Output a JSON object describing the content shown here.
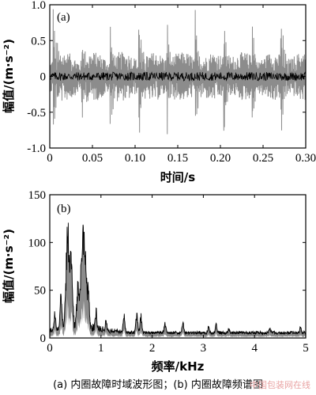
{
  "caption": "(a) 内圈故障时域波形图；(b) 内圈故障频谱图",
  "watermark": "中国包装网在线",
  "chart_data": [
    {
      "type": "line",
      "panel_label": "(a)",
      "xlabel": "时间/s",
      "ylabel": "幅值/(m·s⁻²)",
      "xlim": [
        0,
        0.3
      ],
      "ylim": [
        -1.0,
        1.0
      ],
      "xticks": [
        0,
        0.05,
        0.1,
        0.15,
        0.2,
        0.25,
        0.3
      ],
      "xtick_labels": [
        "0",
        "0.05",
        "0.10",
        "0.15",
        "0.20",
        "0.25",
        "0.30"
      ],
      "yticks": [
        -1.0,
        -0.5,
        0,
        0.5,
        1.0
      ],
      "ytick_labels": [
        "-1.0",
        "-0.5",
        "0",
        "0.5",
        "1.0"
      ],
      "fill_color": "#8c8c8c",
      "line_color": "#000000",
      "signal": {
        "duration": 0.3,
        "samples": 1200,
        "impulse_period": 0.0333,
        "impulse_first": 0.004,
        "impulse_peaks": [
          0.85,
          0.6,
          0.7,
          0.92,
          0.8,
          0.75,
          0.9,
          0.7,
          0.95
        ],
        "noise_amplitude": 0.28
      }
    },
    {
      "type": "line",
      "panel_label": "(b)",
      "xlabel": "频率/kHz",
      "ylabel": "幅值/(m·s⁻²)",
      "xlim": [
        0,
        5
      ],
      "ylim": [
        0,
        150
      ],
      "xticks": [
        0,
        1,
        2,
        3,
        4,
        5
      ],
      "xtick_labels": [
        "0",
        "1",
        "2",
        "3",
        "4",
        "5"
      ],
      "yticks": [
        0,
        50,
        100,
        150
      ],
      "ytick_labels": [
        "0",
        "50",
        "100",
        "150"
      ],
      "fill_color": "#8c8c8c",
      "line_color": "#000000",
      "peaks": [
        {
          "x": 0.1,
          "y": 22
        },
        {
          "x": 0.22,
          "y": 40
        },
        {
          "x": 0.35,
          "y": 124
        },
        {
          "x": 0.42,
          "y": 80
        },
        {
          "x": 0.55,
          "y": 55
        },
        {
          "x": 0.63,
          "y": 98
        },
        {
          "x": 0.68,
          "y": 104
        },
        {
          "x": 0.75,
          "y": 48
        },
        {
          "x": 0.9,
          "y": 22
        },
        {
          "x": 1.1,
          "y": 15
        },
        {
          "x": 1.45,
          "y": 20
        },
        {
          "x": 1.7,
          "y": 25
        },
        {
          "x": 1.78,
          "y": 21
        },
        {
          "x": 2.25,
          "y": 12
        },
        {
          "x": 2.6,
          "y": 13
        },
        {
          "x": 3.1,
          "y": 8
        },
        {
          "x": 3.25,
          "y": 11
        },
        {
          "x": 3.5,
          "y": 5
        },
        {
          "x": 4.3,
          "y": 5
        },
        {
          "x": 4.9,
          "y": 7
        }
      ],
      "noise_floor": 4
    }
  ]
}
